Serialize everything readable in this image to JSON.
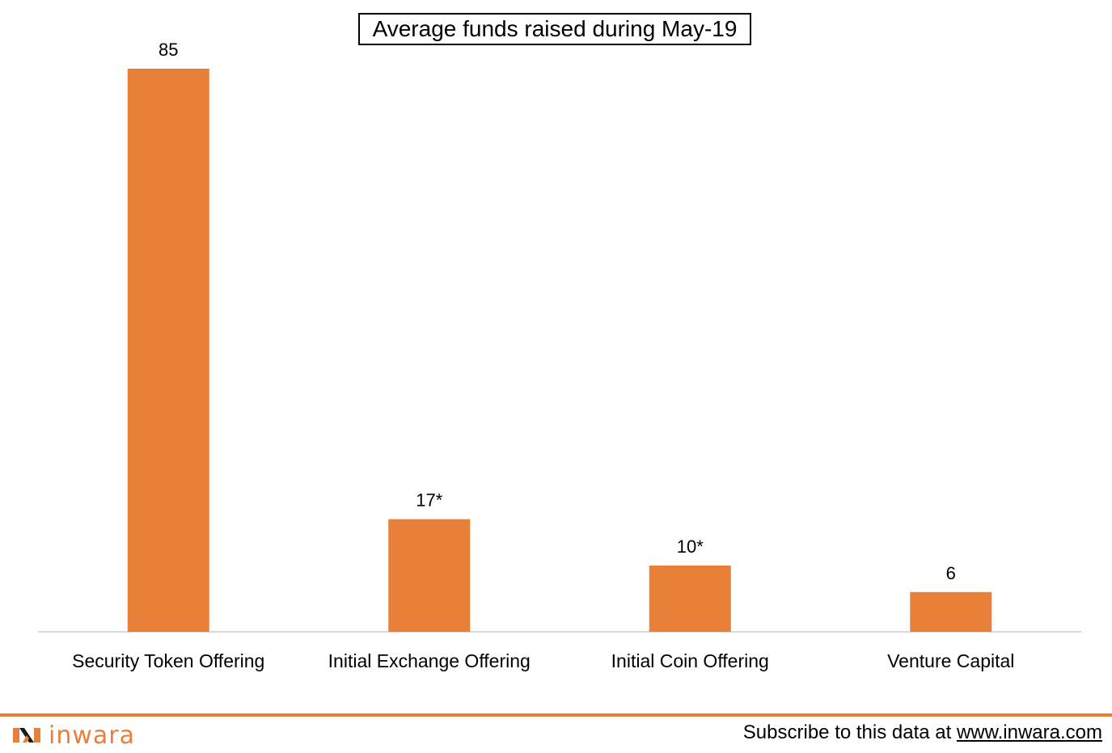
{
  "chart_data": {
    "type": "bar",
    "title": "Average funds raised during May-19",
    "categories": [
      "Security Token Offering",
      "Initial Exchange Offering",
      "Initial Coin Offering",
      "Venture Capital"
    ],
    "values": [
      85,
      17,
      10,
      6
    ],
    "data_labels": [
      "85",
      "17*",
      "10*",
      "6"
    ],
    "xlabel": "",
    "ylabel": "",
    "ylim": [
      0,
      85
    ],
    "grid": false,
    "legend": "none",
    "bar_color": "#E8803A",
    "axis_color": "#D9D9D9"
  },
  "footer": {
    "brand": "inwara",
    "brand_color": "#E8803A",
    "subscribe_text": "Subscribe to this data at ",
    "subscribe_link": "www.inwara.com",
    "logo_icon": "inwara-logo-icon"
  }
}
